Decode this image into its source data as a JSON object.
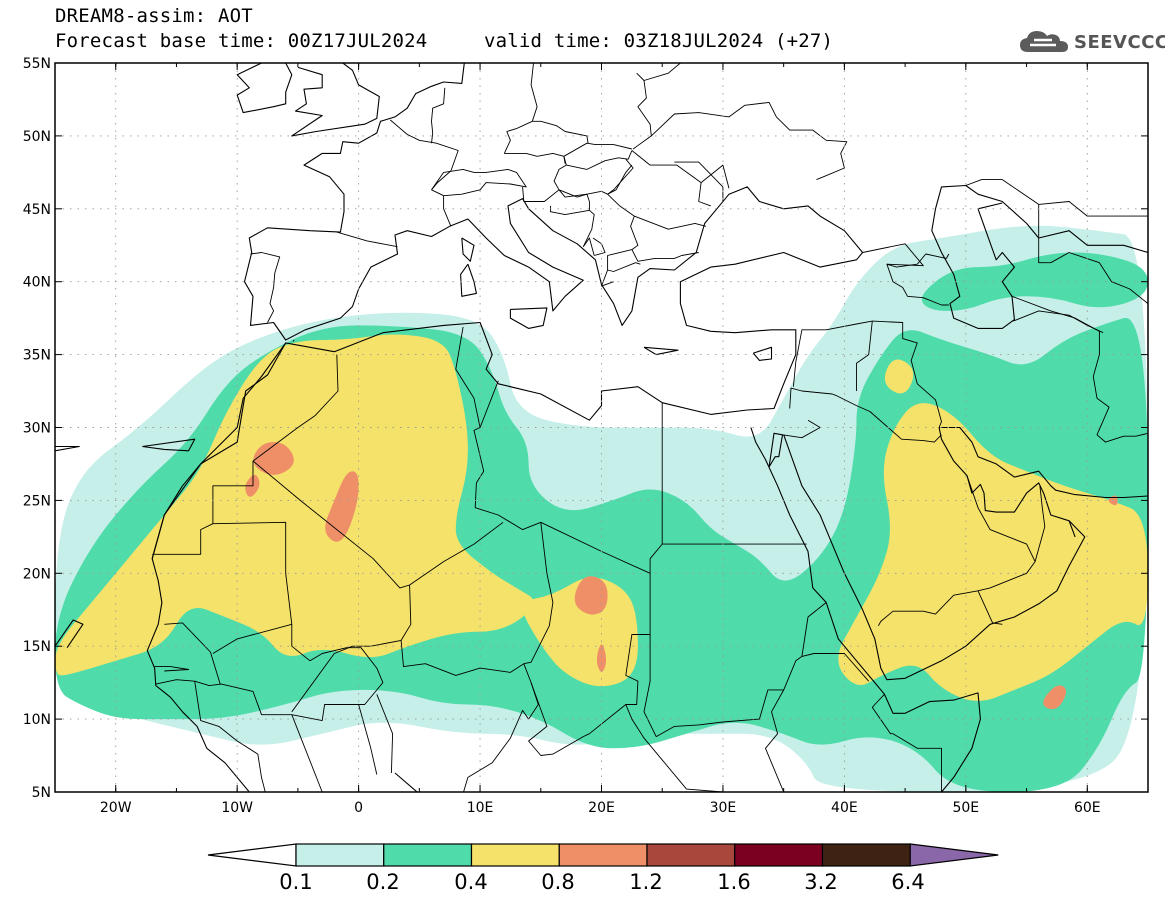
{
  "header": {
    "title": "DREAM8-assim: AOT",
    "base_time": "Forecast base time: 00Z17JUL2024",
    "valid_time": "valid time: 03Z18JUL2024 (+27)",
    "logo_text": "SEEVCCC",
    "logo_icon": "cloud-icon"
  },
  "map": {
    "projection": "lat-lon",
    "lon_range": [
      -25,
      65
    ],
    "lat_range": [
      5,
      55
    ],
    "grid": "dotted",
    "lat_ticks": [
      {
        "lat": 55,
        "label": "55N"
      },
      {
        "lat": 50,
        "label": "50N"
      },
      {
        "lat": 45,
        "label": "45N"
      },
      {
        "lat": 40,
        "label": "40N"
      },
      {
        "lat": 35,
        "label": "35N"
      },
      {
        "lat": 30,
        "label": "30N"
      },
      {
        "lat": 25,
        "label": "25N"
      },
      {
        "lat": 20,
        "label": "20N"
      },
      {
        "lat": 15,
        "label": "15N"
      },
      {
        "lat": 10,
        "label": "10N"
      },
      {
        "lat": 5,
        "label": "5N"
      }
    ],
    "lon_ticks": [
      {
        "lon": -20,
        "label": "20W"
      },
      {
        "lon": -10,
        "label": "10W"
      },
      {
        "lon": 0,
        "label": "0"
      },
      {
        "lon": 10,
        "label": "10E"
      },
      {
        "lon": 20,
        "label": "20E"
      },
      {
        "lon": 30,
        "label": "30E"
      },
      {
        "lon": 40,
        "label": "40E"
      },
      {
        "lon": 50,
        "label": "50E"
      },
      {
        "lon": 60,
        "label": "60E"
      }
    ],
    "fields": [
      {
        "level": "0.1-0.2",
        "color": "#c5efe8",
        "regions": [
          [
            [
              -25,
              22
            ],
            [
              -23,
              27
            ],
            [
              -18,
              30
            ],
            [
              -13,
              34
            ],
            [
              -9,
              36
            ],
            [
              -3,
              37.5
            ],
            [
              4,
              38
            ],
            [
              10,
              37.5
            ],
            [
              12,
              35
            ],
            [
              13,
              31
            ],
            [
              18,
              30
            ],
            [
              24,
              30
            ],
            [
              29,
              30
            ],
            [
              33,
              29
            ],
            [
              35,
              32
            ],
            [
              37,
              35
            ],
            [
              39,
              37
            ],
            [
              41,
              40
            ],
            [
              44,
              42.5
            ],
            [
              48,
              43
            ],
            [
              55,
              44
            ],
            [
              61,
              43.5
            ],
            [
              65,
              43
            ],
            [
              65,
              9
            ],
            [
              59,
              5
            ],
            [
              38,
              5
            ],
            [
              37,
              7
            ],
            [
              34,
              9
            ],
            [
              29,
              9
            ],
            [
              24,
              9
            ],
            [
              18,
              8
            ],
            [
              13,
              9
            ],
            [
              8,
              9
            ],
            [
              2,
              10
            ],
            [
              -3,
              9
            ],
            [
              -8,
              8
            ],
            [
              -13,
              9
            ],
            [
              -18,
              10
            ],
            [
              -22,
              11
            ],
            [
              -25,
              12
            ]
          ]
        ]
      },
      {
        "level": "0.2-0.4",
        "color": "#4fdcaa",
        "regions": [
          [
            [
              -25,
              17
            ],
            [
              -22,
              22
            ],
            [
              -18,
              26
            ],
            [
              -14,
              29
            ],
            [
              -11,
              33
            ],
            [
              -8,
              35
            ],
            [
              -3,
              37
            ],
            [
              3,
              37
            ],
            [
              9,
              36.5
            ],
            [
              11,
              34
            ],
            [
              12,
              31
            ],
            [
              14,
              29
            ],
            [
              14,
              26
            ],
            [
              17,
              24
            ],
            [
              21,
              25
            ],
            [
              24,
              26
            ],
            [
              27,
              25
            ],
            [
              29,
              23
            ],
            [
              31,
              22
            ],
            [
              33,
              21
            ],
            [
              35,
              19
            ],
            [
              38,
              21
            ],
            [
              40,
              24
            ],
            [
              41,
              29
            ],
            [
              41,
              32
            ],
            [
              43,
              35
            ],
            [
              45,
              37
            ],
            [
              48,
              36
            ],
            [
              52,
              35
            ],
            [
              55,
              34
            ],
            [
              58,
              36
            ],
            [
              61,
              37
            ],
            [
              65,
              38
            ],
            [
              65,
              13
            ],
            [
              63,
              12
            ],
            [
              61,
              8
            ],
            [
              58,
              5
            ],
            [
              49,
              5
            ],
            [
              46,
              8
            ],
            [
              42,
              9
            ],
            [
              38,
              8
            ],
            [
              35,
              9
            ],
            [
              31,
              10
            ],
            [
              27,
              9
            ],
            [
              23,
              8
            ],
            [
              19,
              8
            ],
            [
              15,
              10
            ],
            [
              11,
              11
            ],
            [
              7,
              11
            ],
            [
              3,
              12
            ],
            [
              -2,
              12
            ],
            [
              -6,
              11
            ],
            [
              -11,
              10
            ],
            [
              -16,
              10
            ],
            [
              -20,
              10
            ],
            [
              -23,
              11
            ],
            [
              -25,
              12
            ]
          ],
          [
            [
              46,
              39
            ],
            [
              49,
              41
            ],
            [
              53,
              41
            ],
            [
              57,
              42
            ],
            [
              61,
              42
            ],
            [
              65,
              41
            ],
            [
              65,
              39
            ],
            [
              61,
              38
            ],
            [
              57,
              39
            ],
            [
              53,
              39
            ],
            [
              50,
              38
            ],
            [
              47,
              38
            ]
          ]
        ]
      },
      {
        "level": "0.4-0.8",
        "color": "#f5e26a",
        "regions": [
          [
            [
              -25,
              15
            ],
            [
              -22,
              18
            ],
            [
              -19,
              21
            ],
            [
              -16,
              24
            ],
            [
              -13,
              27
            ],
            [
              -11,
              31
            ],
            [
              -8,
              35
            ],
            [
              -5,
              36
            ],
            [
              -1,
              36
            ],
            [
              3,
              36.5
            ],
            [
              7,
              36
            ],
            [
              8,
              34
            ],
            [
              9,
              30
            ],
            [
              9,
              27
            ],
            [
              8,
              24
            ],
            [
              8,
              22
            ],
            [
              11,
              20
            ],
            [
              13,
              19
            ],
            [
              15,
              18
            ],
            [
              12,
              16
            ],
            [
              8,
              16
            ],
            [
              4,
              15
            ],
            [
              1,
              14
            ],
            [
              -3,
              15
            ],
            [
              -6,
              14
            ],
            [
              -8,
              16
            ],
            [
              -11,
              17
            ],
            [
              -14,
              18
            ],
            [
              -16,
              15
            ],
            [
              -20,
              14
            ],
            [
              -24,
              13
            ],
            [
              -25,
              13
            ]
          ],
          [
            [
              13,
              18
            ],
            [
              16,
              18.5
            ],
            [
              19,
              20
            ],
            [
              22,
              19
            ],
            [
              23,
              17
            ],
            [
              23,
              13
            ],
            [
              20,
              12
            ],
            [
              17,
              13
            ],
            [
              15,
              15
            ]
          ],
          [
            [
              39,
              14
            ],
            [
              41,
              17
            ],
            [
              43,
              20
            ],
            [
              44,
              23
            ],
            [
              43,
              27
            ],
            [
              44,
              30
            ],
            [
              46,
              32
            ],
            [
              49,
              31
            ],
            [
              52,
              28
            ],
            [
              55,
              27
            ],
            [
              58,
              26
            ],
            [
              62,
              25
            ],
            [
              65,
              24
            ],
            [
              65,
              16
            ],
            [
              63,
              17
            ],
            [
              60,
              15
            ],
            [
              57,
              13
            ],
            [
              54,
              12
            ],
            [
              51,
              11
            ],
            [
              48,
              12
            ],
            [
              46,
              14
            ],
            [
              43,
              13
            ],
            [
              41,
              12
            ]
          ],
          [
            [
              43,
              33
            ],
            [
              44,
              35
            ],
            [
              46,
              34
            ],
            [
              45,
              32
            ]
          ]
        ]
      },
      {
        "level": "0.8-1.2",
        "color": "#ee8f68",
        "regions": [
          [
            [
              -9,
              27.5
            ],
            [
              -8,
              29
            ],
            [
              -6,
              29
            ],
            [
              -5,
              27.5
            ],
            [
              -7,
              26.5
            ]
          ],
          [
            [
              -9.5,
              26
            ],
            [
              -8.5,
              27
            ],
            [
              -8,
              26
            ],
            [
              -9,
              25
            ]
          ],
          [
            [
              -3,
              23
            ],
            [
              -2,
              25
            ],
            [
              -1,
              27
            ],
            [
              0,
              27
            ],
            [
              0,
              25
            ],
            [
              -1,
              22.5
            ],
            [
              -2,
              22
            ]
          ],
          [
            [
              17.5,
              18
            ],
            [
              18.5,
              20
            ],
            [
              20.5,
              19.5
            ],
            [
              20.5,
              17.5
            ],
            [
              19,
              17
            ]
          ],
          [
            [
              19.5,
              14
            ],
            [
              20,
              15.5
            ],
            [
              20.5,
              14
            ],
            [
              20,
              13
            ]
          ],
          [
            [
              56,
              11
            ],
            [
              57.5,
              12.5
            ],
            [
              58.5,
              12
            ],
            [
              57.5,
              10.5
            ]
          ],
          [
            [
              61.5,
              25
            ],
            [
              62.5,
              25.5
            ],
            [
              62.5,
              24.5
            ]
          ]
        ]
      }
    ]
  },
  "colorbar": {
    "colors": [
      "#ffffff",
      "#c5efe8",
      "#4fdcaa",
      "#f5e26a",
      "#ee8f68",
      "#a8473b",
      "#7b0020",
      "#3e2315",
      "#8a67a8"
    ],
    "labels": [
      "0.1",
      "0.2",
      "0.4",
      "0.8",
      "1.2",
      "1.6",
      "3.2",
      "6.4"
    ]
  }
}
